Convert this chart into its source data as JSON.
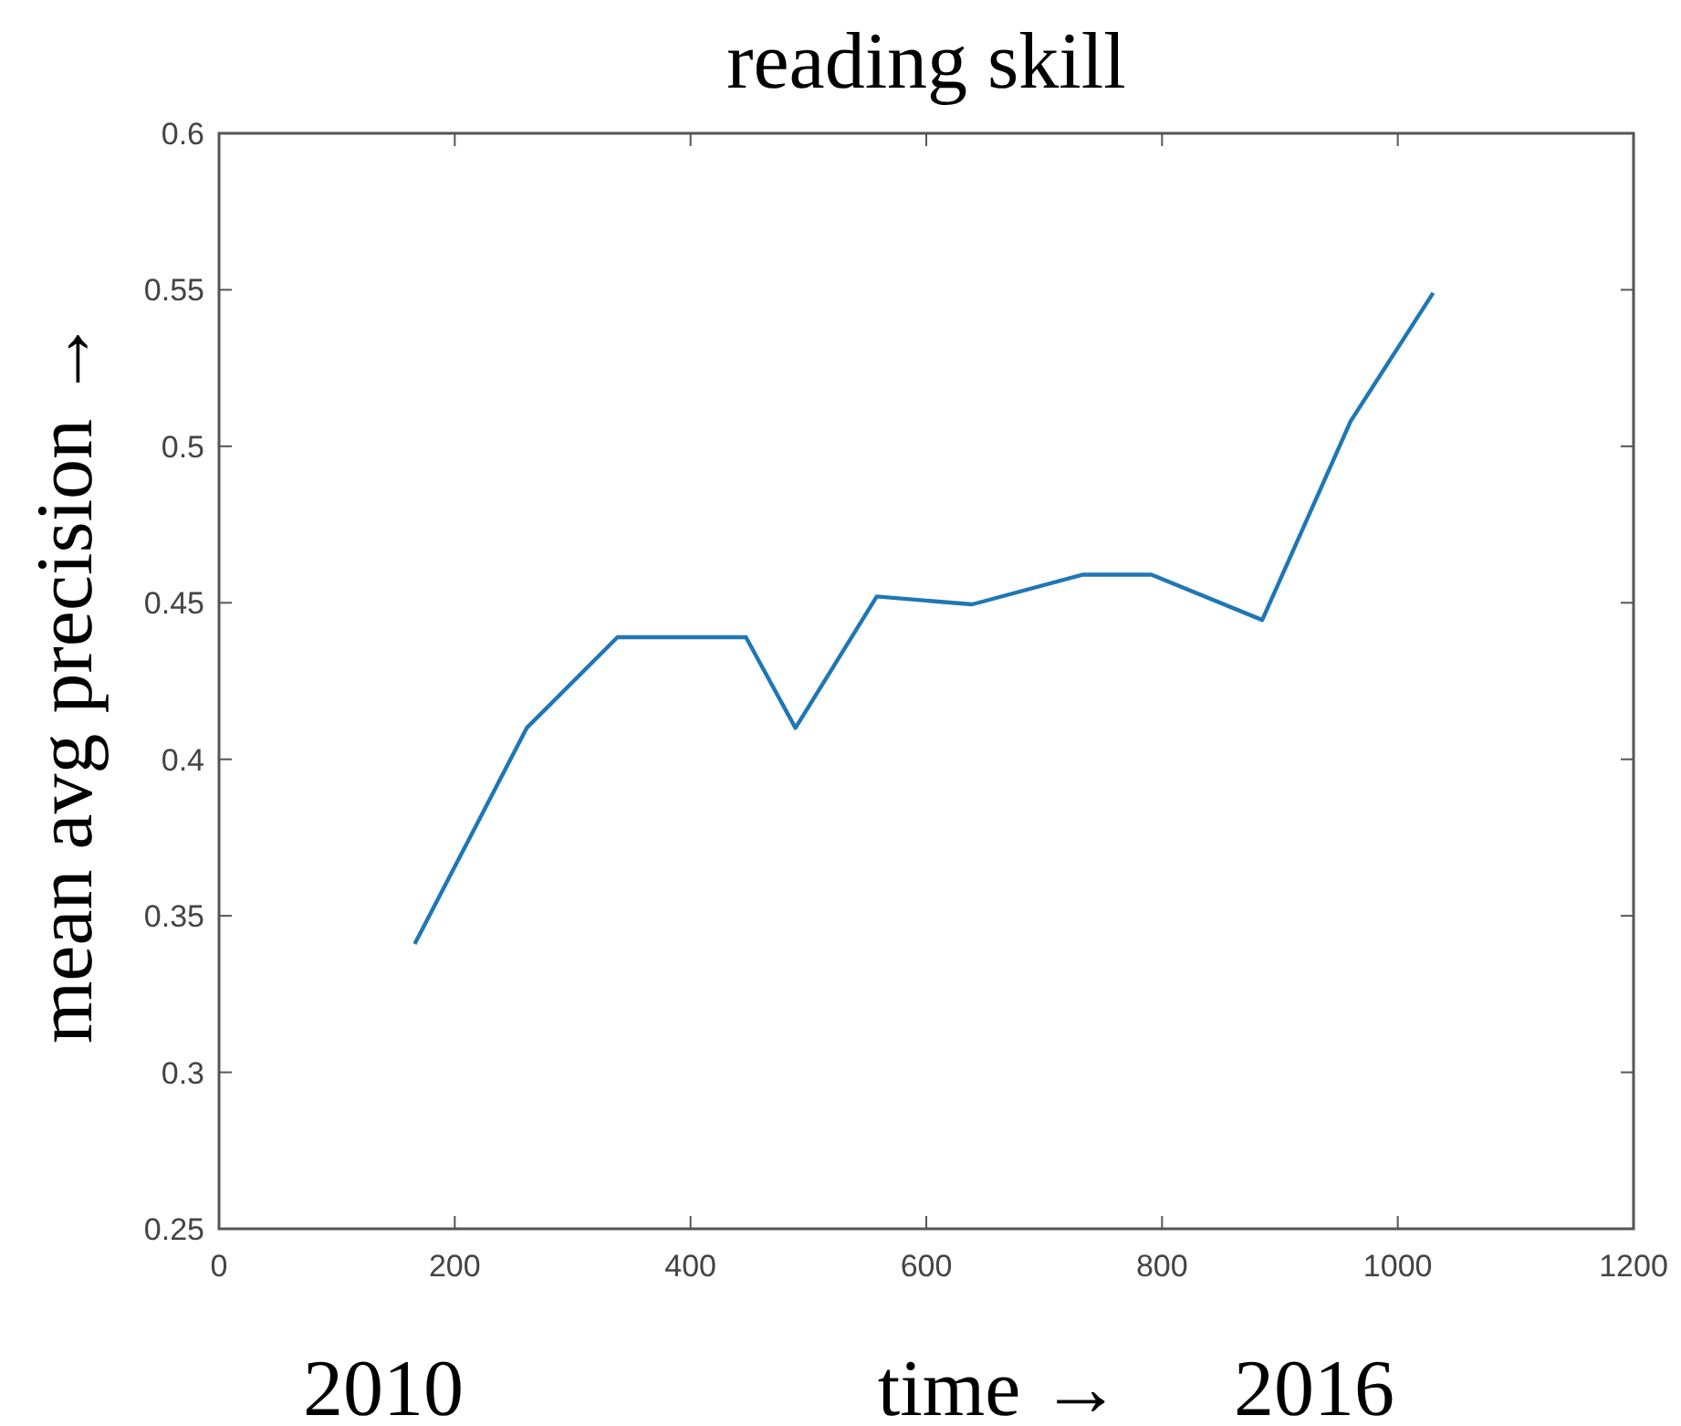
{
  "chart_data": {
    "type": "line",
    "title": "reading skill",
    "xlabel": "time →",
    "ylabel": "mean avg precision →",
    "x": [
      166,
      261,
      338,
      447,
      489,
      558,
      639,
      733,
      791,
      885,
      960,
      1030
    ],
    "series": [
      {
        "color": "#1f77b4",
        "values": [
          0.341,
          0.41,
          0.439,
          0.439,
          0.41,
          0.452,
          0.4495,
          0.459,
          0.459,
          0.4445,
          0.508,
          0.549
        ]
      }
    ],
    "xlim": [
      0,
      1200
    ],
    "xticks": [
      0,
      200,
      400,
      600,
      800,
      1000,
      1200
    ],
    "ylim": [
      0.25,
      0.6
    ],
    "yticks": [
      0.25,
      0.3,
      0.35,
      0.4,
      0.45,
      0.5,
      0.55,
      0.6
    ],
    "annotations": [
      "2010",
      "2016"
    ],
    "grid": false,
    "marker": "none",
    "line_style": "solid"
  }
}
